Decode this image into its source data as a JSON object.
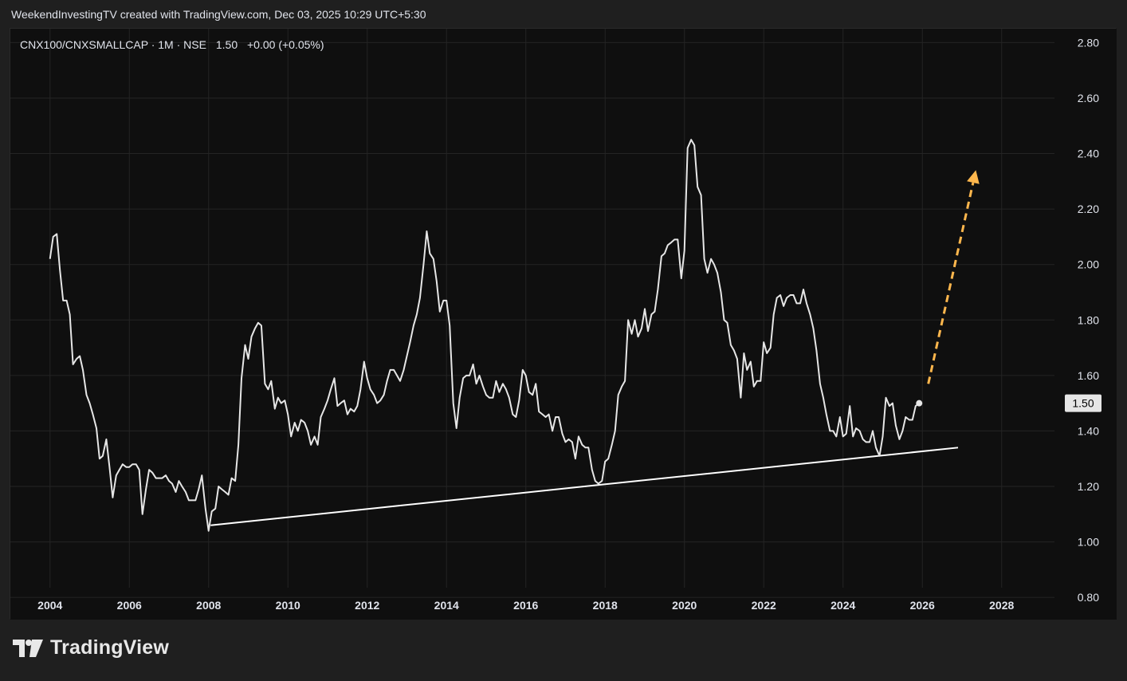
{
  "header": {
    "created_line": "WeekendInvestingTV created with TradingView.com, Dec 03, 2025 10:29 UTC+5:30"
  },
  "legend": {
    "symbol": "CNX100/CNXSMALLCAP",
    "interval": "1M",
    "exchange": "NSE",
    "value": "1.50",
    "change": "+0.00 (+0.05%)"
  },
  "price_label": "1.50",
  "brand": {
    "name": "TradingView",
    "icon": "tradingview-logo-icon"
  },
  "colors": {
    "background": "#0f0f0f",
    "grid": "#242424",
    "series": "#e6e6e6",
    "trendline": "#ffffff",
    "projection_arrow": "#ffb74d",
    "price_label_bg": "#e6e6e6"
  },
  "chart_data": {
    "type": "line",
    "series": [
      {
        "points": [
          [
            2004.0,
            2.02
          ],
          [
            2004.08,
            2.1
          ],
          [
            2004.17,
            2.11
          ],
          [
            2004.25,
            1.98
          ],
          [
            2004.33,
            1.87
          ],
          [
            2004.42,
            1.87
          ],
          [
            2004.5,
            1.82
          ],
          [
            2004.58,
            1.64
          ],
          [
            2004.67,
            1.66
          ],
          [
            2004.75,
            1.67
          ],
          [
            2004.83,
            1.62
          ],
          [
            2004.92,
            1.53
          ],
          [
            2005.0,
            1.5
          ],
          [
            2005.08,
            1.46
          ],
          [
            2005.17,
            1.41
          ],
          [
            2005.25,
            1.3
          ],
          [
            2005.33,
            1.31
          ],
          [
            2005.42,
            1.37
          ],
          [
            2005.5,
            1.27
          ],
          [
            2005.58,
            1.16
          ],
          [
            2005.67,
            1.24
          ],
          [
            2005.75,
            1.26
          ],
          [
            2005.83,
            1.28
          ],
          [
            2005.92,
            1.27
          ],
          [
            2006.0,
            1.27
          ],
          [
            2006.08,
            1.28
          ],
          [
            2006.17,
            1.28
          ],
          [
            2006.25,
            1.26
          ],
          [
            2006.33,
            1.1
          ],
          [
            2006.42,
            1.19
          ],
          [
            2006.5,
            1.26
          ],
          [
            2006.58,
            1.25
          ],
          [
            2006.67,
            1.23
          ],
          [
            2006.75,
            1.23
          ],
          [
            2006.83,
            1.23
          ],
          [
            2006.92,
            1.24
          ],
          [
            2007.0,
            1.22
          ],
          [
            2007.08,
            1.21
          ],
          [
            2007.17,
            1.18
          ],
          [
            2007.25,
            1.22
          ],
          [
            2007.33,
            1.2
          ],
          [
            2007.42,
            1.18
          ],
          [
            2007.5,
            1.15
          ],
          [
            2007.58,
            1.15
          ],
          [
            2007.67,
            1.15
          ],
          [
            2007.75,
            1.19
          ],
          [
            2007.83,
            1.24
          ],
          [
            2007.92,
            1.12
          ],
          [
            2008.0,
            1.04
          ],
          [
            2008.08,
            1.11
          ],
          [
            2008.17,
            1.12
          ],
          [
            2008.25,
            1.2
          ],
          [
            2008.33,
            1.19
          ],
          [
            2008.42,
            1.18
          ],
          [
            2008.5,
            1.17
          ],
          [
            2008.58,
            1.23
          ],
          [
            2008.67,
            1.22
          ],
          [
            2008.75,
            1.35
          ],
          [
            2008.83,
            1.59
          ],
          [
            2008.92,
            1.71
          ],
          [
            2009.0,
            1.66
          ],
          [
            2009.08,
            1.74
          ],
          [
            2009.17,
            1.77
          ],
          [
            2009.25,
            1.79
          ],
          [
            2009.33,
            1.78
          ],
          [
            2009.42,
            1.57
          ],
          [
            2009.5,
            1.55
          ],
          [
            2009.58,
            1.58
          ],
          [
            2009.67,
            1.48
          ],
          [
            2009.75,
            1.52
          ],
          [
            2009.83,
            1.5
          ],
          [
            2009.92,
            1.51
          ],
          [
            2010.0,
            1.46
          ],
          [
            2010.08,
            1.38
          ],
          [
            2010.17,
            1.43
          ],
          [
            2010.25,
            1.4
          ],
          [
            2010.33,
            1.44
          ],
          [
            2010.42,
            1.43
          ],
          [
            2010.5,
            1.4
          ],
          [
            2010.58,
            1.35
          ],
          [
            2010.67,
            1.38
          ],
          [
            2010.75,
            1.35
          ],
          [
            2010.83,
            1.45
          ],
          [
            2010.92,
            1.48
          ],
          [
            2011.0,
            1.51
          ],
          [
            2011.08,
            1.55
          ],
          [
            2011.17,
            1.59
          ],
          [
            2011.25,
            1.49
          ],
          [
            2011.33,
            1.5
          ],
          [
            2011.42,
            1.51
          ],
          [
            2011.5,
            1.46
          ],
          [
            2011.58,
            1.48
          ],
          [
            2011.67,
            1.47
          ],
          [
            2011.75,
            1.49
          ],
          [
            2011.83,
            1.55
          ],
          [
            2011.92,
            1.65
          ],
          [
            2012.0,
            1.59
          ],
          [
            2012.08,
            1.55
          ],
          [
            2012.17,
            1.53
          ],
          [
            2012.25,
            1.5
          ],
          [
            2012.33,
            1.51
          ],
          [
            2012.42,
            1.53
          ],
          [
            2012.5,
            1.58
          ],
          [
            2012.58,
            1.62
          ],
          [
            2012.67,
            1.62
          ],
          [
            2012.75,
            1.6
          ],
          [
            2012.83,
            1.58
          ],
          [
            2012.92,
            1.62
          ],
          [
            2013.0,
            1.67
          ],
          [
            2013.08,
            1.72
          ],
          [
            2013.17,
            1.78
          ],
          [
            2013.25,
            1.82
          ],
          [
            2013.33,
            1.88
          ],
          [
            2013.42,
            2.0
          ],
          [
            2013.5,
            2.12
          ],
          [
            2013.58,
            2.04
          ],
          [
            2013.67,
            2.02
          ],
          [
            2013.75,
            1.94
          ],
          [
            2013.83,
            1.83
          ],
          [
            2013.92,
            1.87
          ],
          [
            2014.0,
            1.87
          ],
          [
            2014.08,
            1.78
          ],
          [
            2014.17,
            1.5
          ],
          [
            2014.25,
            1.41
          ],
          [
            2014.33,
            1.52
          ],
          [
            2014.42,
            1.59
          ],
          [
            2014.5,
            1.6
          ],
          [
            2014.58,
            1.6
          ],
          [
            2014.67,
            1.64
          ],
          [
            2014.75,
            1.57
          ],
          [
            2014.83,
            1.6
          ],
          [
            2014.92,
            1.56
          ],
          [
            2015.0,
            1.53
          ],
          [
            2015.08,
            1.52
          ],
          [
            2015.17,
            1.52
          ],
          [
            2015.25,
            1.58
          ],
          [
            2015.33,
            1.54
          ],
          [
            2015.42,
            1.57
          ],
          [
            2015.5,
            1.55
          ],
          [
            2015.58,
            1.52
          ],
          [
            2015.67,
            1.46
          ],
          [
            2015.75,
            1.45
          ],
          [
            2015.83,
            1.51
          ],
          [
            2015.92,
            1.62
          ],
          [
            2016.0,
            1.6
          ],
          [
            2016.08,
            1.54
          ],
          [
            2016.17,
            1.53
          ],
          [
            2016.25,
            1.57
          ],
          [
            2016.33,
            1.47
          ],
          [
            2016.42,
            1.46
          ],
          [
            2016.5,
            1.45
          ],
          [
            2016.58,
            1.46
          ],
          [
            2016.67,
            1.4
          ],
          [
            2016.75,
            1.45
          ],
          [
            2016.83,
            1.45
          ],
          [
            2016.92,
            1.39
          ],
          [
            2017.0,
            1.36
          ],
          [
            2017.08,
            1.37
          ],
          [
            2017.17,
            1.36
          ],
          [
            2017.25,
            1.3
          ],
          [
            2017.33,
            1.38
          ],
          [
            2017.42,
            1.35
          ],
          [
            2017.5,
            1.34
          ],
          [
            2017.58,
            1.34
          ],
          [
            2017.67,
            1.26
          ],
          [
            2017.75,
            1.22
          ],
          [
            2017.83,
            1.21
          ],
          [
            2017.92,
            1.22
          ],
          [
            2018.0,
            1.29
          ],
          [
            2018.08,
            1.3
          ],
          [
            2018.17,
            1.35
          ],
          [
            2018.25,
            1.4
          ],
          [
            2018.33,
            1.53
          ],
          [
            2018.42,
            1.56
          ],
          [
            2018.5,
            1.58
          ],
          [
            2018.58,
            1.8
          ],
          [
            2018.67,
            1.75
          ],
          [
            2018.75,
            1.8
          ],
          [
            2018.83,
            1.74
          ],
          [
            2018.92,
            1.77
          ],
          [
            2019.0,
            1.84
          ],
          [
            2019.08,
            1.76
          ],
          [
            2019.17,
            1.82
          ],
          [
            2019.25,
            1.83
          ],
          [
            2019.33,
            1.91
          ],
          [
            2019.42,
            2.03
          ],
          [
            2019.5,
            2.04
          ],
          [
            2019.58,
            2.07
          ],
          [
            2019.67,
            2.08
          ],
          [
            2019.75,
            2.09
          ],
          [
            2019.83,
            2.09
          ],
          [
            2019.92,
            1.95
          ],
          [
            2020.0,
            2.05
          ],
          [
            2020.08,
            2.42
          ],
          [
            2020.17,
            2.45
          ],
          [
            2020.25,
            2.43
          ],
          [
            2020.33,
            2.28
          ],
          [
            2020.42,
            2.25
          ],
          [
            2020.5,
            2.02
          ],
          [
            2020.58,
            1.97
          ],
          [
            2020.67,
            2.02
          ],
          [
            2020.75,
            2.0
          ],
          [
            2020.83,
            1.97
          ],
          [
            2020.92,
            1.9
          ],
          [
            2021.0,
            1.8
          ],
          [
            2021.08,
            1.79
          ],
          [
            2021.17,
            1.71
          ],
          [
            2021.25,
            1.69
          ],
          [
            2021.33,
            1.66
          ],
          [
            2021.42,
            1.52
          ],
          [
            2021.5,
            1.68
          ],
          [
            2021.58,
            1.62
          ],
          [
            2021.67,
            1.65
          ],
          [
            2021.75,
            1.56
          ],
          [
            2021.83,
            1.58
          ],
          [
            2021.92,
            1.58
          ],
          [
            2022.0,
            1.72
          ],
          [
            2022.08,
            1.68
          ],
          [
            2022.17,
            1.7
          ],
          [
            2022.25,
            1.82
          ],
          [
            2022.33,
            1.88
          ],
          [
            2022.42,
            1.89
          ],
          [
            2022.5,
            1.85
          ],
          [
            2022.58,
            1.88
          ],
          [
            2022.67,
            1.89
          ],
          [
            2022.75,
            1.89
          ],
          [
            2022.83,
            1.86
          ],
          [
            2022.92,
            1.86
          ],
          [
            2023.0,
            1.91
          ],
          [
            2023.08,
            1.86
          ],
          [
            2023.17,
            1.82
          ],
          [
            2023.25,
            1.77
          ],
          [
            2023.33,
            1.69
          ],
          [
            2023.42,
            1.57
          ],
          [
            2023.5,
            1.52
          ],
          [
            2023.58,
            1.46
          ],
          [
            2023.67,
            1.4
          ],
          [
            2023.75,
            1.4
          ],
          [
            2023.83,
            1.38
          ],
          [
            2023.92,
            1.45
          ],
          [
            2024.0,
            1.38
          ],
          [
            2024.08,
            1.39
          ],
          [
            2024.17,
            1.49
          ],
          [
            2024.25,
            1.38
          ],
          [
            2024.33,
            1.41
          ],
          [
            2024.42,
            1.4
          ],
          [
            2024.5,
            1.37
          ],
          [
            2024.58,
            1.36
          ],
          [
            2024.67,
            1.36
          ],
          [
            2024.75,
            1.4
          ],
          [
            2024.83,
            1.34
          ],
          [
            2024.92,
            1.31
          ],
          [
            2025.0,
            1.38
          ],
          [
            2025.08,
            1.52
          ],
          [
            2025.17,
            1.49
          ],
          [
            2025.25,
            1.5
          ],
          [
            2025.33,
            1.42
          ],
          [
            2025.42,
            1.37
          ],
          [
            2025.5,
            1.4
          ],
          [
            2025.58,
            1.45
          ],
          [
            2025.67,
            1.44
          ],
          [
            2025.75,
            1.44
          ],
          [
            2025.83,
            1.49
          ],
          [
            2025.92,
            1.5
          ]
        ]
      }
    ],
    "trendline": {
      "from": [
        2008.05,
        1.06
      ],
      "to": [
        2026.9,
        1.34
      ]
    },
    "projection_arrow": {
      "from": [
        2026.15,
        1.57
      ],
      "to": [
        2027.35,
        2.34
      ],
      "style": "dashed"
    },
    "x_ticks": [
      "2004",
      "2006",
      "2008",
      "2010",
      "2012",
      "2014",
      "2016",
      "2018",
      "2020",
      "2022",
      "2024",
      "2026",
      "2028"
    ],
    "y_ticks": [
      "0.80",
      "1.00",
      "1.20",
      "1.40",
      "1.60",
      "1.80",
      "2.00",
      "2.20",
      "2.40",
      "2.60",
      "2.80"
    ],
    "xlim": [
      2003.0,
      2030.9
    ],
    "ylim": [
      0.72,
      2.85
    ],
    "grid": true,
    "y_axis_side": "right"
  }
}
